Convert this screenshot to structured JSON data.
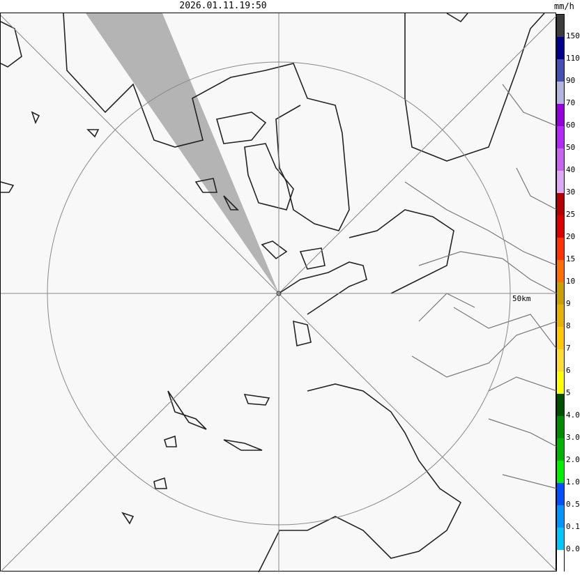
{
  "header": {
    "timestamp": "2026.01.11.19:50",
    "unit": "mm/h"
  },
  "map": {
    "range_ring_label": "50km",
    "blocked_sector_color": "#b4b4b4"
  },
  "legend": {
    "colors": [
      "#3c3c3c",
      "#00008c",
      "#4650b4",
      "#b4b4dc",
      "#9600dc",
      "#b428fa",
      "#c864f0",
      "#dcaaf5",
      "#b40000",
      "#dc0000",
      "#ff3200",
      "#ff6e00",
      "#c8a000",
      "#e6b400",
      "#ffc800",
      "#ffdc32",
      "#ffff00",
      "#005000",
      "#008c00",
      "#00b400",
      "#00f000",
      "#0050ff",
      "#0096ff",
      "#00c8ff",
      "#ffffff"
    ],
    "labels": [
      "150",
      "110",
      "90",
      "70",
      "60",
      "50",
      "40",
      "30",
      "25",
      "20",
      "15",
      "10",
      "9",
      "8",
      "7",
      "6",
      "5",
      "4.0",
      "3.0",
      "2.0",
      "1.0",
      "0.5",
      "0.1",
      "0.0"
    ]
  }
}
